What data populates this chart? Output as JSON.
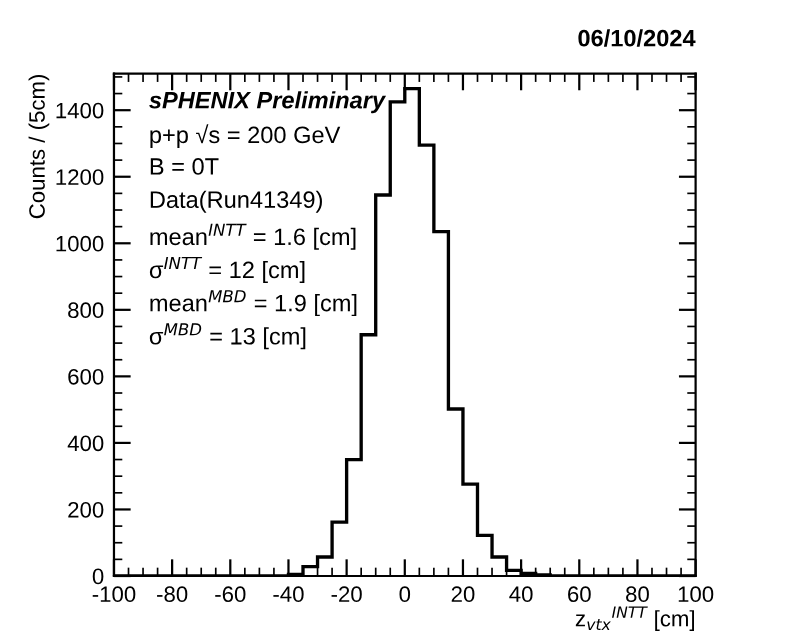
{
  "chart_data": {
    "type": "histogram",
    "title": "06/10/2024",
    "xlabel": "z$_{vtx}$$^{INTT}$ [cm]",
    "ylabel": "Counts / (5cm)",
    "annotations": [
      "sPHENIX Preliminary",
      "p+p √s = 200 GeV",
      "B = 0T",
      "Data(Run41349)",
      "mean$^{INTT}$ = 1.6 [cm]",
      "σ$^{INTT}$ = 12 [cm]",
      "mean$^{MBD}$ = 1.9 [cm]",
      "σ$^{MBD}$ = 13 [cm]"
    ],
    "bins": [
      -100,
      -95,
      -90,
      -85,
      -80,
      -75,
      -70,
      -65,
      -60,
      -55,
      -50,
      -45,
      -40,
      -35,
      -30,
      -25,
      -20,
      -15,
      -10,
      -5,
      0,
      5,
      10,
      15,
      20,
      25,
      30,
      35,
      40,
      45,
      50,
      55,
      60,
      65,
      70,
      75,
      80,
      85,
      90,
      95,
      100
    ],
    "values": [
      0,
      0,
      0,
      0,
      0,
      0,
      0,
      0,
      0,
      0,
      0,
      0,
      5,
      28,
      57,
      162,
      350,
      725,
      1145,
      1425,
      1465,
      1295,
      1035,
      502,
      276,
      122,
      57,
      17,
      8,
      3,
      0,
      0,
      0,
      0,
      0,
      0,
      0,
      0,
      0,
      0
    ],
    "color": "#000000",
    "xlim": [
      -100,
      100
    ],
    "ylim": [
      0,
      1510
    ],
    "xticks": [
      -100,
      -80,
      -60,
      -40,
      -20,
      0,
      20,
      40,
      60,
      80,
      100
    ],
    "yticks": [
      0,
      200,
      400,
      600,
      800,
      1000,
      1200,
      1400
    ],
    "grid": false,
    "legend": false
  }
}
